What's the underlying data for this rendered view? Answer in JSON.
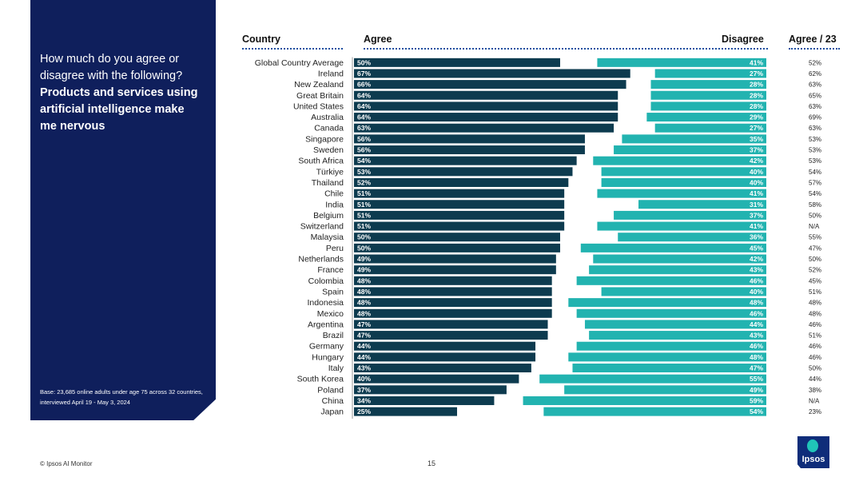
{
  "panel": {
    "question_plain": "How much do you agree or disagree with the following?",
    "question_bold": "Products and services using artificial intelligence make me nervous",
    "base_note": "Base: 23,685 online adults under age 75 across 32 countries, interviewed April 19 - May 3, 2024"
  },
  "headers": {
    "country": "Country",
    "agree": "Agree",
    "disagree": "Disagree",
    "agree23": "Agree / 23"
  },
  "footer": {
    "source": "© Ipsos AI Monitor",
    "page_number": "15",
    "logo_text": "Ipsos"
  },
  "colors": {
    "agree_bar": "#0d3b4f",
    "disagree_bar": "#22b3b0",
    "panel_bg": "#0f1f5c"
  },
  "chart_data": {
    "type": "bar",
    "orientation": "horizontal-diverging",
    "title": "Products and services using artificial intelligence make me nervous",
    "categories": [
      "Global Country Average",
      "Ireland",
      "New Zealand",
      "Great Britain",
      "United States",
      "Australia",
      "Canada",
      "Singapore",
      "Sweden",
      "South Africa",
      "Türkiye",
      "Thailand",
      "Chile",
      "India",
      "Belgium",
      "Switzerland",
      "Malaysia",
      "Peru",
      "Netherlands",
      "France",
      "Colombia",
      "Spain",
      "Indonesia",
      "Mexico",
      "Argentina",
      "Brazil",
      "Germany",
      "Hungary",
      "Italy",
      "South Korea",
      "Poland",
      "China",
      "Japan"
    ],
    "series": [
      {
        "name": "Agree",
        "values": [
          50,
          67,
          66,
          64,
          64,
          64,
          63,
          56,
          56,
          54,
          53,
          52,
          51,
          51,
          51,
          51,
          50,
          50,
          49,
          49,
          48,
          48,
          48,
          48,
          47,
          47,
          44,
          44,
          43,
          40,
          37,
          34,
          25
        ]
      },
      {
        "name": "Disagree",
        "values": [
          41,
          27,
          28,
          28,
          28,
          29,
          27,
          35,
          37,
          42,
          40,
          40,
          41,
          31,
          37,
          41,
          36,
          45,
          42,
          43,
          46,
          40,
          48,
          46,
          44,
          43,
          46,
          48,
          47,
          55,
          49,
          59,
          54
        ]
      }
    ],
    "agree_2023": [
      "52%",
      "62%",
      "63%",
      "65%",
      "63%",
      "69%",
      "63%",
      "53%",
      "53%",
      "53%",
      "54%",
      "57%",
      "54%",
      "58%",
      "50%",
      "N/A",
      "55%",
      "47%",
      "50%",
      "52%",
      "45%",
      "51%",
      "48%",
      "48%",
      "46%",
      "51%",
      "46%",
      "46%",
      "50%",
      "44%",
      "38%",
      "N/A",
      "23%"
    ],
    "value_suffix": "%",
    "xlim": [
      0,
      100
    ]
  }
}
